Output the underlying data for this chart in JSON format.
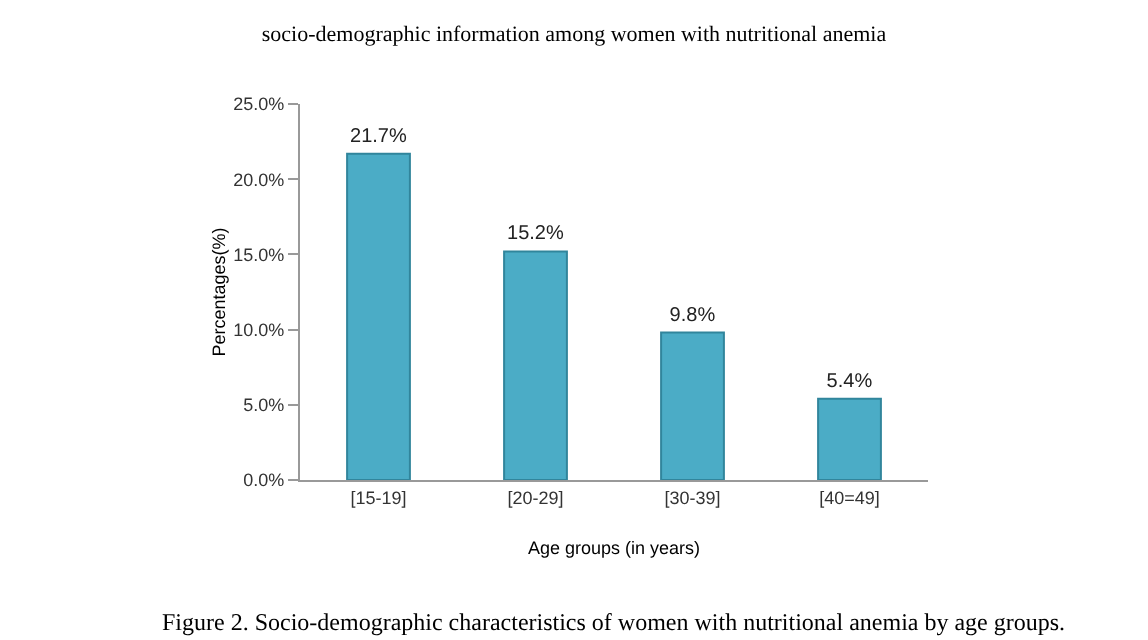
{
  "chart_data": {
    "type": "bar",
    "title": "socio-demographic information among women with nutritional anemia",
    "xlabel": "Age groups (in years)",
    "ylabel": "Percentages(%)",
    "categories": [
      "[15-19]",
      "[20-29]",
      "[30-39]",
      "[40=49]"
    ],
    "values": [
      21.7,
      15.2,
      9.8,
      5.4
    ],
    "color": "#4bacc6",
    "value_labels": [
      "21.7%",
      "15.2%",
      "9.8%",
      "5.4%"
    ],
    "ylim": [
      0,
      25
    ],
    "yticks": [
      {
        "value": 0,
        "label": "0.0%"
      },
      {
        "value": 5,
        "label": "5.0%"
      },
      {
        "value": 10,
        "label": "10.0%"
      },
      {
        "value": 15,
        "label": "15.0%"
      },
      {
        "value": 20,
        "label": "20.0%"
      },
      {
        "value": 25,
        "label": "25.0%"
      }
    ],
    "grid": false,
    "annotations": [
      "Figure 2. Socio-demographic characteristics of women with nutritional anemia by age groups."
    ]
  }
}
